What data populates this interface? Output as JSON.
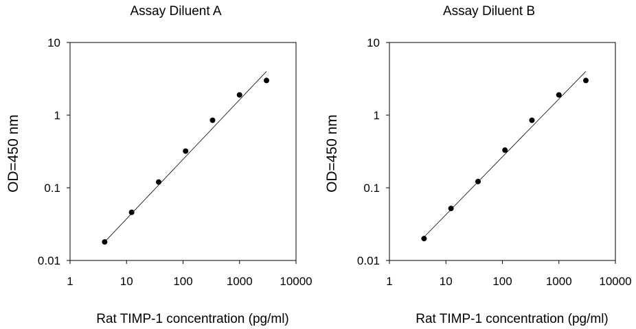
{
  "chart_data": [
    {
      "type": "scatter",
      "title": "Assay Diluent A",
      "xlabel": "Rat TIMP-1 concentration (pg/ml)",
      "ylabel": "OD=450 nm",
      "x_scale": "log",
      "y_scale": "log",
      "xlim": [
        1,
        10000
      ],
      "ylim": [
        0.01,
        10
      ],
      "x_ticks": [
        "1",
        "10",
        "100",
        "1000",
        "10000"
      ],
      "y_ticks": [
        "0.01",
        "0.1",
        "1",
        "10"
      ],
      "grid": false,
      "series": [
        {
          "x": [
            4.1,
            12.3,
            37,
            111,
            333,
            1000,
            3000
          ],
          "y": [
            0.018,
            0.046,
            0.12,
            0.32,
            0.85,
            1.9,
            3.0
          ]
        }
      ],
      "trendline": {
        "x": [
          4.1,
          3000
        ],
        "y": [
          0.018,
          4.0
        ]
      }
    },
    {
      "type": "scatter",
      "title": "Assay Diluent B",
      "xlabel": "Rat TIMP-1 concentration (pg/ml)",
      "ylabel": "OD=450 nm",
      "x_scale": "log",
      "y_scale": "log",
      "xlim": [
        1,
        10000
      ],
      "ylim": [
        0.01,
        10
      ],
      "x_ticks": [
        "1",
        "10",
        "100",
        "1000",
        "10000"
      ],
      "y_ticks": [
        "0.01",
        "0.1",
        "1",
        "10"
      ],
      "grid": false,
      "series": [
        {
          "x": [
            4.1,
            12.3,
            37,
            111,
            333,
            1000,
            3000
          ],
          "y": [
            0.02,
            0.052,
            0.122,
            0.33,
            0.85,
            1.9,
            3.0
          ]
        }
      ],
      "trendline": {
        "x": [
          4.1,
          3000
        ],
        "y": [
          0.021,
          4.0
        ]
      }
    }
  ]
}
